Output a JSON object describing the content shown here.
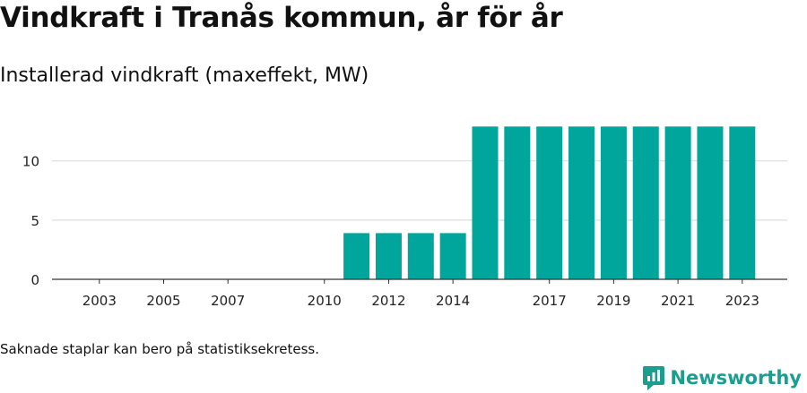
{
  "page": {
    "title": "Vindkraft i Tranås kommun, år för år",
    "subtitle": "Installerad vindkraft (maxeffekt, MW)",
    "footnote": "Saknade staplar kan bero på statistiksekretess.",
    "brand": "Newsworthy",
    "brand_color": "#1b9e8f"
  },
  "chart_data": {
    "type": "bar",
    "title": "Installerad vindkraft (maxeffekt, MW)",
    "xlabel": "",
    "ylabel": "",
    "categories": [
      "2003",
      "2004",
      "2005",
      "2006",
      "2007",
      "2008",
      "2009",
      "2010",
      "2011",
      "2012",
      "2013",
      "2014",
      "2015",
      "2016",
      "2017",
      "2018",
      "2019",
      "2020",
      "2021",
      "2022",
      "2023"
    ],
    "values": [
      0,
      0,
      0,
      0,
      0,
      0,
      0,
      0,
      3.9,
      3.9,
      3.9,
      3.9,
      12.9,
      12.9,
      12.9,
      12.9,
      12.9,
      12.9,
      12.9,
      12.9,
      12.9
    ],
    "x_tick_labels": [
      "2003",
      "2005",
      "2007",
      "2010",
      "2012",
      "2014",
      "2017",
      "2019",
      "2021",
      "2023"
    ],
    "y_ticks": [
      0,
      5,
      10
    ],
    "ylim": [
      0,
      13
    ],
    "grid": true,
    "bar_color": "#00a59b",
    "grid_color": "#dddddd",
    "axis_color": "#333333"
  }
}
